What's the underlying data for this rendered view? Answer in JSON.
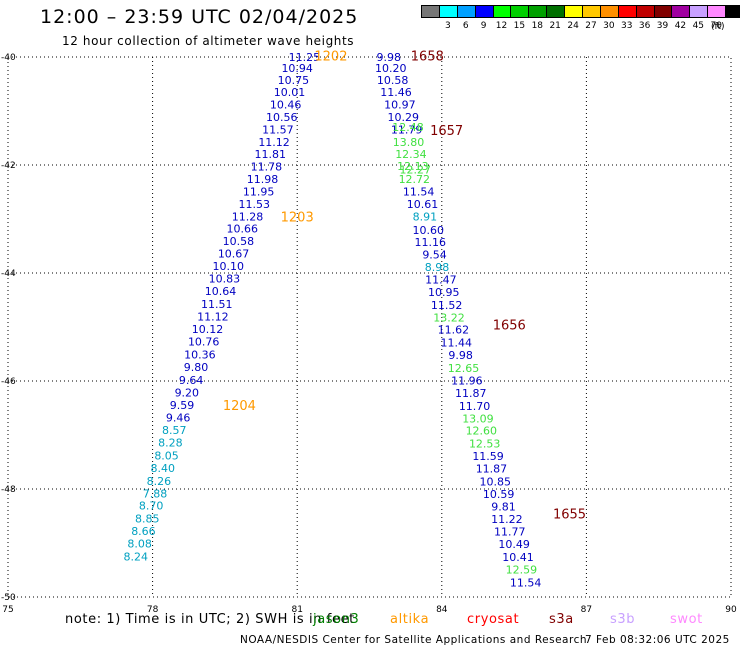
{
  "header": {
    "title": "12:00 – 23:59 UTC 02/04/2025",
    "subtitle": "12 hour collection of altimeter wave heights"
  },
  "color_scale": {
    "unit": "(ft)",
    "bins": [
      {
        "label": "",
        "color": "#777777"
      },
      {
        "label": "3",
        "color": "#00ffff"
      },
      {
        "label": "6",
        "color": "#00a0ff"
      },
      {
        "label": "9",
        "color": "#0000ff"
      },
      {
        "label": "12",
        "color": "#00ff00"
      },
      {
        "label": "15",
        "color": "#00d000"
      },
      {
        "label": "18",
        "color": "#00a000"
      },
      {
        "label": "21",
        "color": "#007000"
      },
      {
        "label": "24",
        "color": "#ffff00"
      },
      {
        "label": "27",
        "color": "#ffc800"
      },
      {
        "label": "30",
        "color": "#ff9000"
      },
      {
        "label": "33",
        "color": "#ff0000"
      },
      {
        "label": "36",
        "color": "#c00000"
      },
      {
        "label": "39",
        "color": "#800000"
      },
      {
        "label": "42",
        "color": "#a000a0"
      },
      {
        "label": "45",
        "color": "#c8a0ff"
      },
      {
        "label": "70",
        "color": "#ff88ff"
      },
      {
        "label": "",
        "color": "#000000"
      }
    ]
  },
  "chart_data": {
    "type": "scatter",
    "title": "12:00 – 23:59 UTC 02/04/2025",
    "xlim": [
      75,
      90
    ],
    "ylim": [
      -50,
      -40
    ],
    "x_ticks": [
      "75",
      "78",
      "81",
      "84",
      "87",
      "90"
    ],
    "y_ticks": [
      "-40",
      "-42",
      "-44",
      "-46",
      "-48",
      "-50"
    ],
    "grid": true,
    "colors": {
      "low": "#00a0c0",
      "mid": "#0000c0",
      "high": "#40e040"
    },
    "series": [
      {
        "points": [
          {
            "lon": 81.15,
            "lat": -40.0,
            "v": "11.25",
            "c": "mid"
          },
          {
            "lon": 81.0,
            "lat": -40.2,
            "v": "10.94",
            "c": "mid"
          },
          {
            "lon": 80.92,
            "lat": -40.43,
            "v": "10.75",
            "c": "mid"
          },
          {
            "lon": 80.84,
            "lat": -40.65,
            "v": "10.01",
            "c": "mid"
          },
          {
            "lon": 80.76,
            "lat": -40.88,
            "v": "10.46",
            "c": "mid"
          },
          {
            "lon": 80.68,
            "lat": -41.11,
            "v": "10.56",
            "c": "mid"
          },
          {
            "lon": 80.6,
            "lat": -41.34,
            "v": "11.57",
            "c": "mid"
          },
          {
            "lon": 80.52,
            "lat": -41.57,
            "v": "11.12",
            "c": "mid"
          },
          {
            "lon": 80.44,
            "lat": -41.8,
            "v": "11.81",
            "c": "mid"
          },
          {
            "lon": 80.36,
            "lat": -42.03,
            "v": "11.78",
            "c": "mid"
          },
          {
            "lon": 80.28,
            "lat": -42.26,
            "v": "11.98",
            "c": "mid"
          },
          {
            "lon": 80.2,
            "lat": -42.49,
            "v": "11.95",
            "c": "mid"
          },
          {
            "lon": 80.11,
            "lat": -42.72,
            "v": "11.53",
            "c": "mid"
          },
          {
            "lon": 79.97,
            "lat": -42.95,
            "v": "11.28",
            "c": "mid"
          },
          {
            "lon": 79.86,
            "lat": -43.18,
            "v": "10.66",
            "c": "mid"
          },
          {
            "lon": 79.78,
            "lat": -43.41,
            "v": "10.58",
            "c": "mid"
          },
          {
            "lon": 79.68,
            "lat": -43.64,
            "v": "10.67",
            "c": "mid"
          },
          {
            "lon": 79.57,
            "lat": -43.87,
            "v": "10.10",
            "c": "mid"
          },
          {
            "lon": 79.49,
            "lat": -44.1,
            "v": "10.83",
            "c": "mid"
          },
          {
            "lon": 79.41,
            "lat": -44.33,
            "v": "10.64",
            "c": "mid"
          },
          {
            "lon": 79.33,
            "lat": -44.57,
            "v": "11.51",
            "c": "mid"
          },
          {
            "lon": 79.25,
            "lat": -44.81,
            "v": "11.12",
            "c": "mid"
          },
          {
            "lon": 79.14,
            "lat": -45.04,
            "v": "10.12",
            "c": "mid"
          },
          {
            "lon": 79.06,
            "lat": -45.27,
            "v": "10.76",
            "c": "mid"
          },
          {
            "lon": 78.98,
            "lat": -45.51,
            "v": "10.36",
            "c": "mid"
          },
          {
            "lon": 78.9,
            "lat": -45.74,
            "v": "9.80",
            "c": "mid"
          },
          {
            "lon": 78.8,
            "lat": -45.98,
            "v": "9.64",
            "c": "mid"
          },
          {
            "lon": 78.71,
            "lat": -46.21,
            "v": "9.20",
            "c": "mid"
          },
          {
            "lon": 78.61,
            "lat": -46.44,
            "v": "9.59",
            "c": "mid"
          },
          {
            "lon": 78.53,
            "lat": -46.68,
            "v": "9.46",
            "c": "mid"
          },
          {
            "lon": 78.45,
            "lat": -46.91,
            "v": "8.57",
            "c": "low"
          },
          {
            "lon": 78.37,
            "lat": -47.14,
            "v": "8.28",
            "c": "low"
          },
          {
            "lon": 78.29,
            "lat": -47.38,
            "v": "8.05",
            "c": "low"
          },
          {
            "lon": 78.21,
            "lat": -47.61,
            "v": "8.40",
            "c": "low"
          },
          {
            "lon": 78.13,
            "lat": -47.85,
            "v": "8.26",
            "c": "low"
          },
          {
            "lon": 78.05,
            "lat": -48.08,
            "v": "7.88",
            "c": "low"
          },
          {
            "lon": 77.97,
            "lat": -48.31,
            "v": "8.70",
            "c": "low"
          },
          {
            "lon": 77.89,
            "lat": -48.55,
            "v": "8.85",
            "c": "low"
          },
          {
            "lon": 77.81,
            "lat": -48.78,
            "v": "8.66",
            "c": "low"
          },
          {
            "lon": 77.73,
            "lat": -49.01,
            "v": "8.08",
            "c": "low"
          },
          {
            "lon": 77.65,
            "lat": -49.25,
            "v": "8.24",
            "c": "low"
          }
        ]
      },
      {
        "points": [
          {
            "lon": 82.9,
            "lat": -40.0,
            "v": "9.98",
            "c": "mid"
          },
          {
            "lon": 82.94,
            "lat": -40.2,
            "v": "10.20",
            "c": "mid"
          },
          {
            "lon": 82.98,
            "lat": -40.43,
            "v": "10.58",
            "c": "mid"
          },
          {
            "lon": 83.05,
            "lat": -40.65,
            "v": "11.46",
            "c": "mid"
          },
          {
            "lon": 83.13,
            "lat": -40.88,
            "v": "10.97",
            "c": "mid"
          },
          {
            "lon": 83.2,
            "lat": -41.11,
            "v": "10.29",
            "c": "mid"
          },
          {
            "lon": 83.27,
            "lat": -41.34,
            "v": "11.79",
            "c": "mid"
          },
          {
            "lon": 83.31,
            "lat": -41.57,
            "v": "13.80",
            "c": "high"
          },
          {
            "lon": 83.36,
            "lat": -41.8,
            "v": "12.34",
            "c": "high"
          },
          {
            "lon": 83.43,
            "lat": -42.26,
            "v": "12.72",
            "c": "high"
          },
          {
            "lon": 83.52,
            "lat": -42.49,
            "v": "11.54",
            "c": "mid"
          },
          {
            "lon": 83.6,
            "lat": -42.72,
            "v": "10.61",
            "c": "mid"
          },
          {
            "lon": 83.65,
            "lat": -42.95,
            "v": "8.91",
            "c": "low"
          },
          {
            "lon": 83.72,
            "lat": -43.2,
            "v": "10.60",
            "c": "mid"
          },
          {
            "lon": 83.76,
            "lat": -43.43,
            "v": "11.16",
            "c": "mid"
          },
          {
            "lon": 83.85,
            "lat": -43.66,
            "v": "9.54",
            "c": "mid"
          },
          {
            "lon": 83.9,
            "lat": -43.89,
            "v": "8.98",
            "c": "low"
          },
          {
            "lon": 83.98,
            "lat": -44.12,
            "v": "11.47",
            "c": "mid"
          },
          {
            "lon": 84.04,
            "lat": -44.35,
            "v": "10.95",
            "c": "mid"
          },
          {
            "lon": 84.1,
            "lat": -44.59,
            "v": "11.52",
            "c": "mid"
          },
          {
            "lon": 84.15,
            "lat": -44.82,
            "v": "13.22",
            "c": "high"
          },
          {
            "lon": 84.24,
            "lat": -45.05,
            "v": "11.62",
            "c": "mid"
          },
          {
            "lon": 84.3,
            "lat": -45.29,
            "v": "11.44",
            "c": "mid"
          },
          {
            "lon": 84.39,
            "lat": -45.52,
            "v": "9.98",
            "c": "mid"
          },
          {
            "lon": 84.45,
            "lat": -45.76,
            "v": "12.65",
            "c": "high"
          },
          {
            "lon": 84.52,
            "lat": -45.99,
            "v": "11.96",
            "c": "mid"
          },
          {
            "lon": 84.6,
            "lat": -46.22,
            "v": "11.87",
            "c": "mid"
          },
          {
            "lon": 84.68,
            "lat": -46.46,
            "v": "11.70",
            "c": "mid"
          },
          {
            "lon": 84.75,
            "lat": -46.69,
            "v": "13.09",
            "c": "high"
          },
          {
            "lon": 84.82,
            "lat": -46.92,
            "v": "12.60",
            "c": "high"
          },
          {
            "lon": 84.89,
            "lat": -47.16,
            "v": "12.53",
            "c": "high"
          },
          {
            "lon": 84.96,
            "lat": -47.39,
            "v": "11.59",
            "c": "mid"
          },
          {
            "lon": 85.03,
            "lat": -47.62,
            "v": "11.87",
            "c": "mid"
          },
          {
            "lon": 85.11,
            "lat": -47.86,
            "v": "10.85",
            "c": "mid"
          },
          {
            "lon": 85.18,
            "lat": -48.09,
            "v": "10.59",
            "c": "mid"
          },
          {
            "lon": 85.28,
            "lat": -48.32,
            "v": "9.81",
            "c": "mid"
          },
          {
            "lon": 85.35,
            "lat": -48.56,
            "v": "11.22",
            "c": "mid"
          },
          {
            "lon": 85.41,
            "lat": -48.79,
            "v": "11.77",
            "c": "mid"
          },
          {
            "lon": 85.5,
            "lat": -49.02,
            "v": "10.49",
            "c": "mid"
          },
          {
            "lon": 85.58,
            "lat": -49.26,
            "v": "10.41",
            "c": "mid"
          },
          {
            "lon": 85.65,
            "lat": -49.49,
            "v": "12.59",
            "c": "high"
          },
          {
            "lon": 85.74,
            "lat": -49.73,
            "v": "11.54",
            "c": "mid"
          }
        ]
      }
    ],
    "overlap_marks": [
      {
        "lon": 83.3,
        "lat": -41.3,
        "v": "12.48",
        "c": "high"
      },
      {
        "lon": 83.4,
        "lat": -42.02,
        "v": "12.13",
        "c": "high"
      },
      {
        "lon": 83.45,
        "lat": -42.08,
        "v": "12.27",
        "c": "high"
      }
    ],
    "time_labels": [
      {
        "lon": 81.7,
        "lat": -39.97,
        "text": "1202",
        "color": "#ff9900"
      },
      {
        "lon": 83.7,
        "lat": -39.97,
        "text": "1658",
        "color": "#800000"
      },
      {
        "lon": 84.1,
        "lat": -41.35,
        "text": "1657",
        "color": "#800000"
      },
      {
        "lon": 81.0,
        "lat": -42.95,
        "text": "1203",
        "color": "#ff9900"
      },
      {
        "lon": 85.4,
        "lat": -44.95,
        "text": "1656",
        "color": "#800000"
      },
      {
        "lon": 79.8,
        "lat": -46.44,
        "text": "1204",
        "color": "#ff9900"
      },
      {
        "lon": 86.65,
        "lat": -48.45,
        "text": "1655",
        "color": "#800000"
      }
    ]
  },
  "note": {
    "text": "note: 1) Time is in UTC; 2) SWH is in feet",
    "missions": [
      {
        "label": "jason3",
        "color": "#008000"
      },
      {
        "label": "altika",
        "color": "#ff9900"
      },
      {
        "label": "cryosat",
        "color": "#ff0000"
      },
      {
        "label": "s3a",
        "color": "#800000"
      },
      {
        "label": "s3b",
        "color": "#c8a0ff"
      },
      {
        "label": "swot",
        "color": "#ff88ff"
      }
    ]
  },
  "footer": {
    "credit": "NOAA/NESDIS Center for Satellite Applications and Research",
    "timestamp": "7 Feb 08:32:06 UTC 2025"
  }
}
